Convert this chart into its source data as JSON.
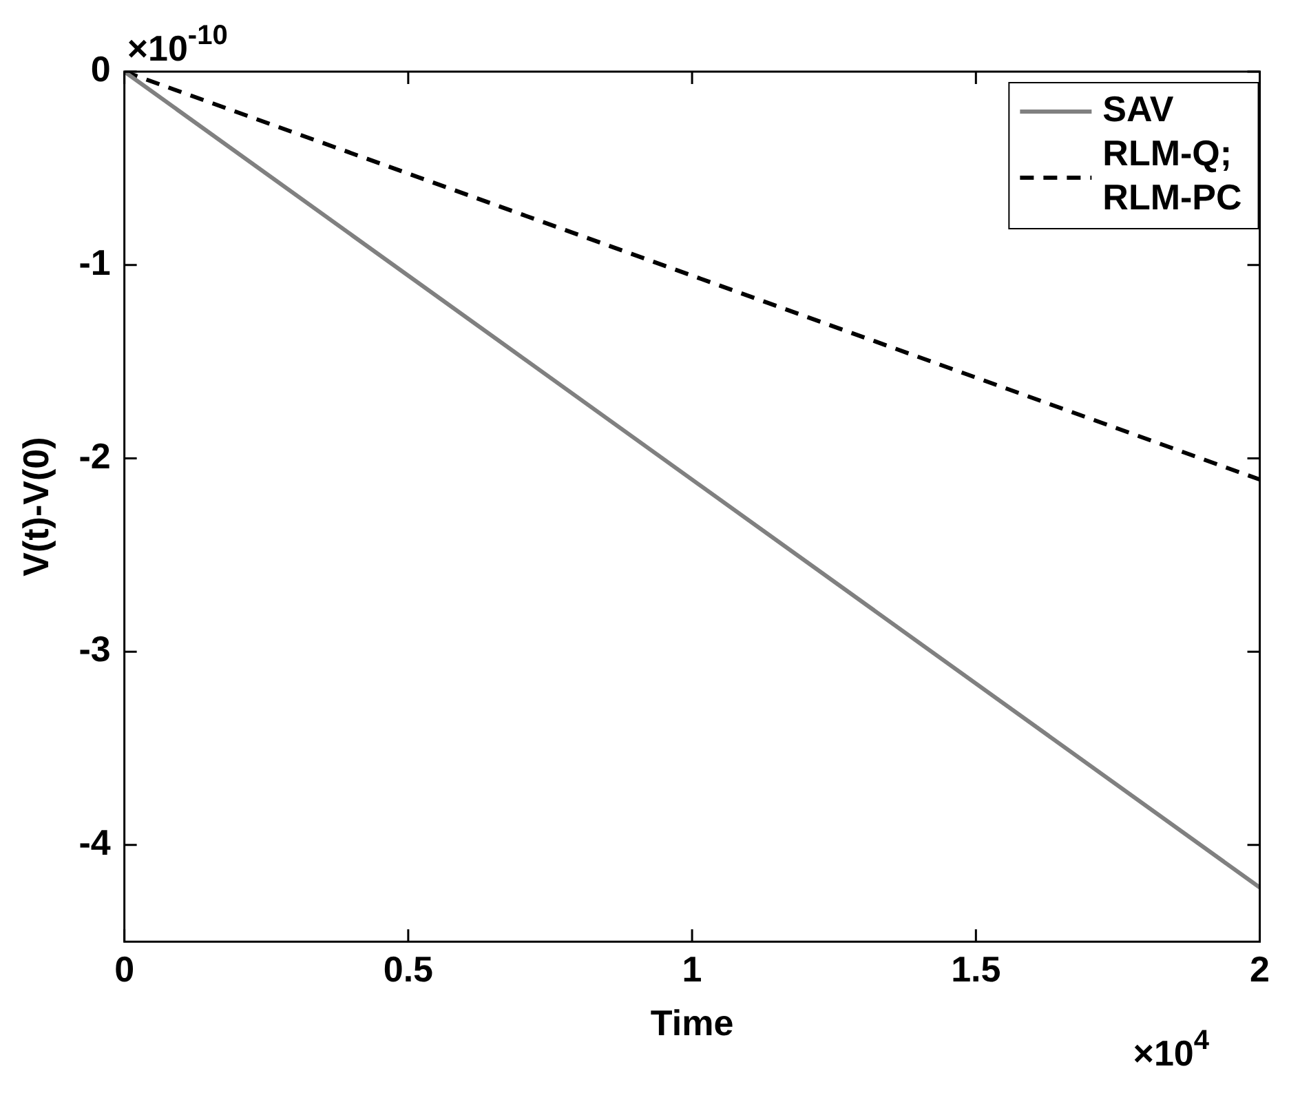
{
  "chart_data": {
    "type": "line",
    "xlabel": "Time",
    "ylabel": "V(t)-V(0)",
    "x": [
      0,
      2
    ],
    "xlim": [
      0,
      2
    ],
    "xticks": [
      0,
      0.5,
      1,
      1.5,
      2
    ],
    "ylim": [
      -4.5,
      0
    ],
    "yticks": [
      0,
      -1,
      -2,
      -3,
      -4
    ],
    "series": [
      {
        "name": "SAV",
        "color": "#808080",
        "values": [
          0,
          -4.22
        ],
        "line_style": "solid"
      },
      {
        "name": "RLM-Q; RLM-PC",
        "color": "#000000",
        "values": [
          0,
          -2.11
        ],
        "line_style": "dashed"
      }
    ],
    "legend": "top right",
    "grid": false,
    "marker": "none",
    "annotations": [
      "×10$^{-10}$",
      "×10$^{4}$"
    ]
  }
}
